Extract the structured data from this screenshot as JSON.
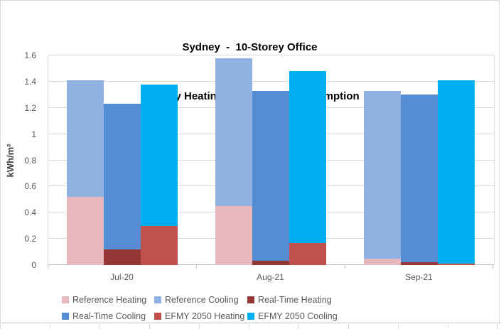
{
  "title": {
    "line1": "Sydney  -  10-Storey Office",
    "line2": "Monthly Heating and Cooling Consumption"
  },
  "y_axis": {
    "label": "kWh/m²",
    "tick_labels": [
      "0",
      "0.2",
      "0.4",
      "0.6",
      "0.8",
      "1",
      "1.2",
      "1.4",
      "1.6"
    ],
    "min": 0,
    "max": 1.6,
    "step": 0.2
  },
  "x_axis": {
    "categories": [
      "Jul-20",
      "Aug-21",
      "Sep-21"
    ]
  },
  "colors": {
    "reference_heating": "#E6B8BB",
    "reference_cooling": "#8FB2E2",
    "real_time_heating": "#943634",
    "real_time_cooling": "#548DD4",
    "efmy_2050_heating": "#C0504D",
    "efmy_2050_cooling": "#00B0F0",
    "gridline": "#D9D9D9",
    "axis_text": "#595959"
  },
  "chart_data": {
    "type": "bar",
    "subtype": "stacked-pairs",
    "title": "Sydney - 10-Storey Office Monthly Heating and Cooling Consumption",
    "xlabel": "",
    "ylabel": "kWh/m²",
    "ylim": [
      0,
      1.6
    ],
    "grid": true,
    "legend_position": "bottom",
    "categories": [
      "Jul-20",
      "Aug-21",
      "Sep-21"
    ],
    "series": [
      {
        "name": "Reference Heating",
        "color": "#E6B8BB",
        "values": [
          0.52,
          0.45,
          0.05
        ]
      },
      {
        "name": "Reference Cooling",
        "color": "#8FB2E2",
        "values": [
          0.89,
          1.13,
          1.28
        ]
      },
      {
        "name": "Real-Time Heating",
        "color": "#943634",
        "values": [
          0.12,
          0.03,
          0.02
        ]
      },
      {
        "name": "Real-Time Cooling",
        "color": "#548DD4",
        "values": [
          1.11,
          1.3,
          1.28
        ]
      },
      {
        "name": "EFMY 2050 Heating",
        "color": "#C0504D",
        "values": [
          0.3,
          0.17,
          0.01
        ]
      },
      {
        "name": "EFMY 2050 Cooling",
        "color": "#00B0F0",
        "values": [
          1.08,
          1.31,
          1.4
        ]
      }
    ],
    "stacks": [
      [
        0,
        1
      ],
      [
        2,
        3
      ],
      [
        4,
        5
      ]
    ],
    "stack_totals": {
      "Reference": [
        1.41,
        1.58,
        1.33
      ],
      "Real-Time": [
        1.23,
        1.33,
        1.3
      ],
      "EFMY 2050": [
        1.38,
        1.48,
        1.41
      ]
    }
  }
}
